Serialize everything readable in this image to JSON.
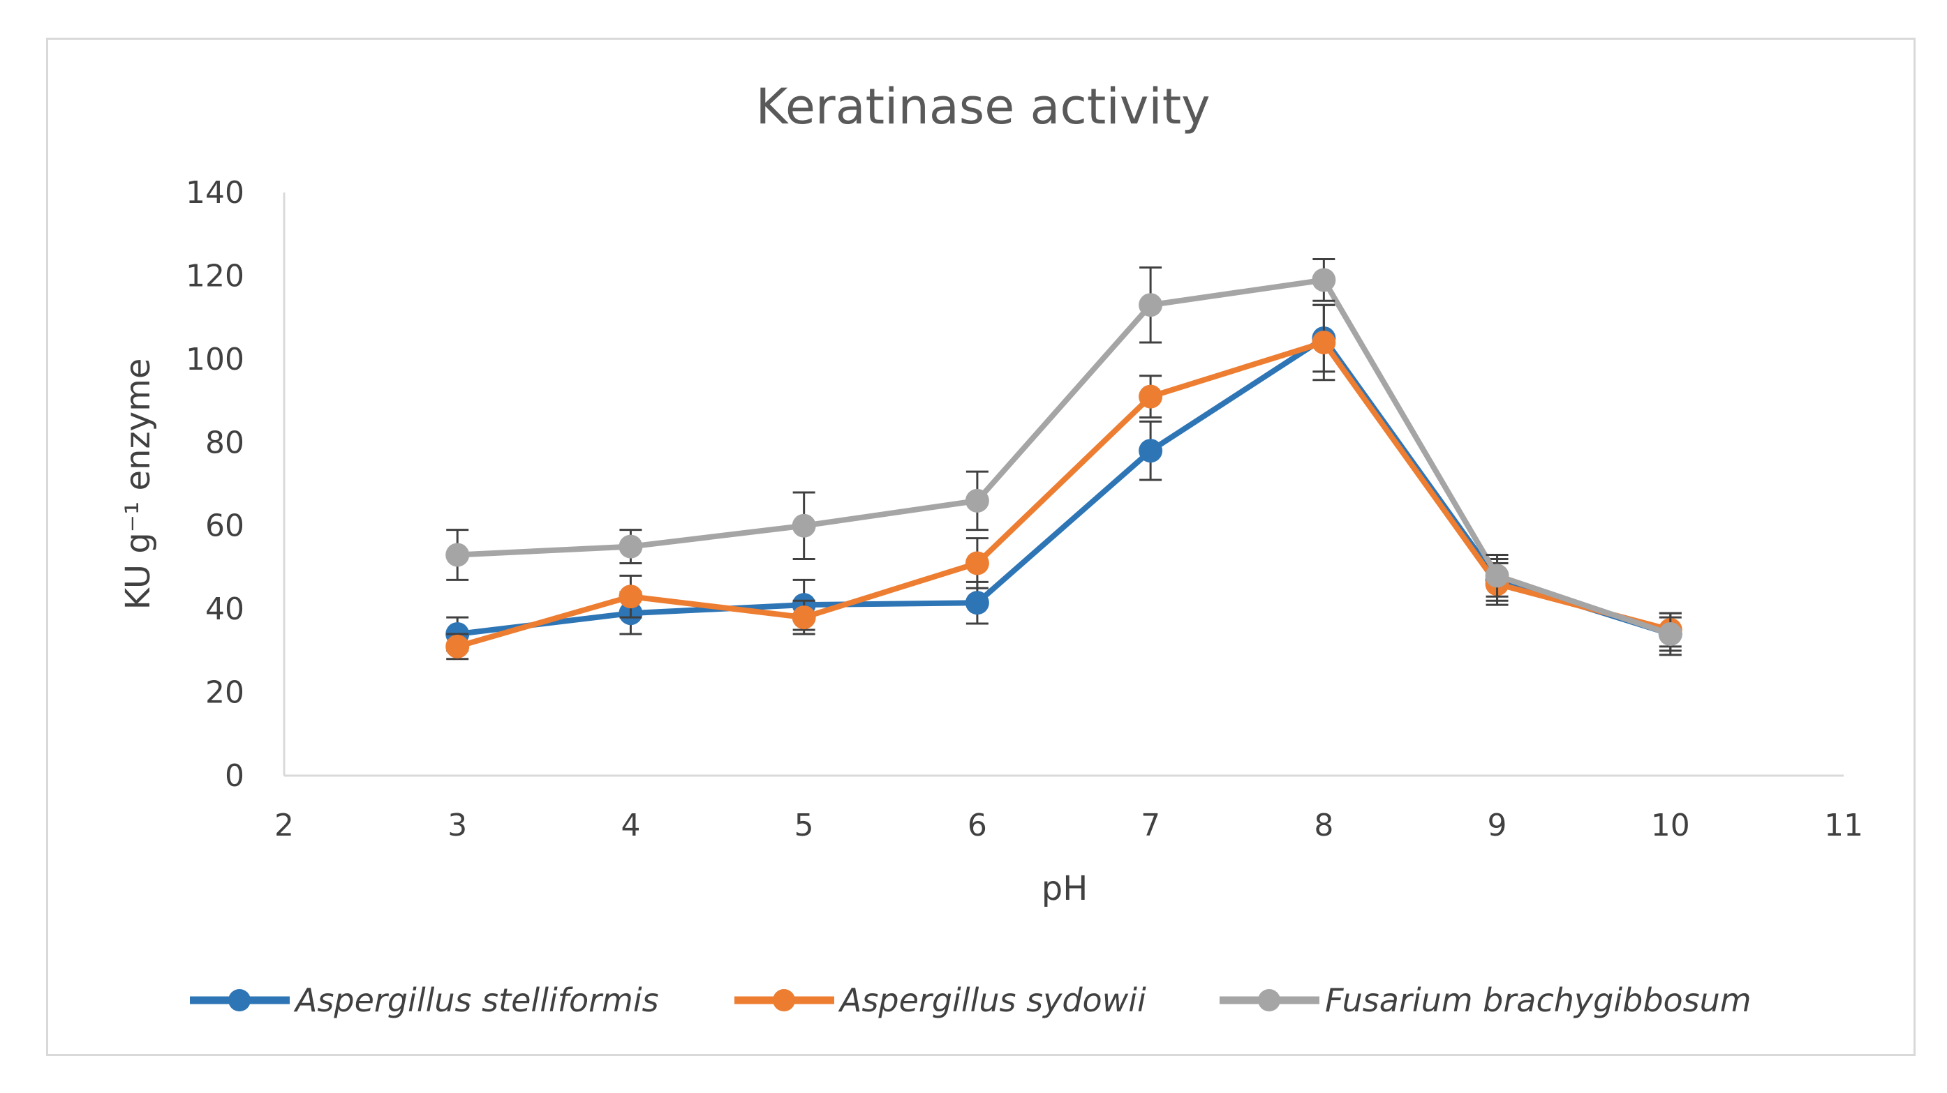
{
  "chart_data": {
    "type": "line",
    "title": "Keratinase activity",
    "xlabel": "pH",
    "ylabel": "KU g⁻¹ enzyme",
    "xlim": [
      2,
      11
    ],
    "ylim": [
      0,
      140
    ],
    "xticks": [
      2,
      3,
      4,
      5,
      6,
      7,
      8,
      9,
      10,
      11
    ],
    "yticks": [
      0,
      20,
      40,
      60,
      80,
      100,
      120,
      140
    ],
    "grid": false,
    "legend_position": "bottom",
    "x": [
      3,
      4,
      5,
      6,
      7,
      8,
      9,
      10
    ],
    "series": [
      {
        "name": "Aspergillus stelliformis",
        "color": "#2e75b6",
        "values": [
          34,
          39,
          41,
          41.5,
          78,
          105,
          47,
          34
        ],
        "errors": [
          4,
          5,
          6,
          5,
          7,
          8,
          5,
          4
        ]
      },
      {
        "name": "Aspergillus sydowii",
        "color": "#ed7d31",
        "values": [
          31,
          43,
          38,
          51,
          91,
          104,
          46,
          35
        ],
        "errors": [
          3,
          5,
          4,
          6,
          5,
          9,
          5,
          4
        ]
      },
      {
        "name": "Fusarium brachygibbosum",
        "color": "#a5a5a5",
        "values": [
          53,
          55,
          60,
          66,
          113,
          119,
          48,
          34
        ],
        "errors": [
          6,
          4,
          8,
          7,
          9,
          5,
          5,
          5
        ]
      }
    ]
  }
}
